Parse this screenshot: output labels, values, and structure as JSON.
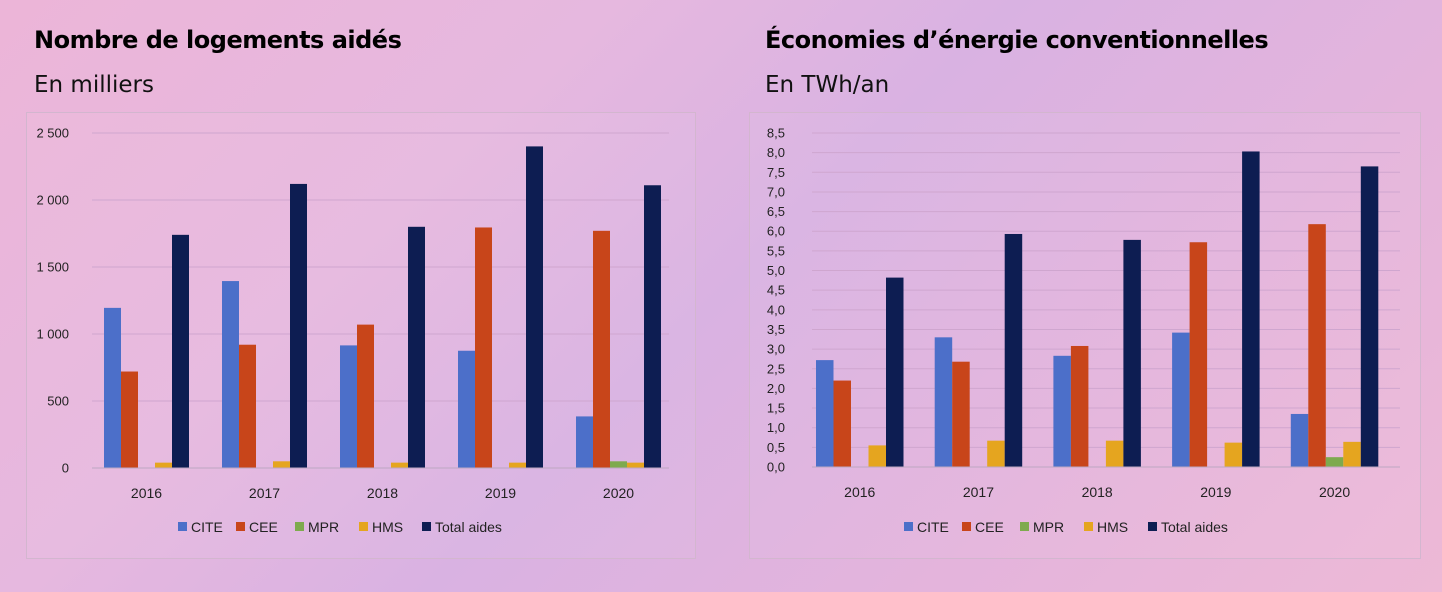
{
  "chart_data": [
    {
      "type": "bar",
      "title": "Nombre de logements aidés",
      "subtitle": "En milliers",
      "xlabel": "",
      "ylabel": "",
      "categories": [
        "2016",
        "2017",
        "2018",
        "2019",
        "2020"
      ],
      "ylim": [
        0,
        2500
      ],
      "yticks": [
        0,
        500,
        1000,
        1500,
        2000,
        2500
      ],
      "ytick_labels": [
        "0",
        "500",
        "1 000",
        "1 500",
        "2 000",
        "2 500"
      ],
      "grid": true,
      "legend_position": "bottom",
      "series": [
        {
          "name": "CITE",
          "color": "#4c6fc9",
          "values": [
            1195,
            1395,
            915,
            875,
            385
          ]
        },
        {
          "name": "CEE",
          "color": "#c8451a",
          "values": [
            720,
            920,
            1070,
            1795,
            1770
          ]
        },
        {
          "name": "MPR",
          "color": "#7eaa4e",
          "values": [
            0,
            0,
            0,
            0,
            50
          ]
        },
        {
          "name": "HMS",
          "color": "#e5a51f",
          "values": [
            40,
            50,
            40,
            40,
            40
          ]
        },
        {
          "name": "Total aides",
          "color": "#0d1d52",
          "values": [
            1740,
            2120,
            1800,
            2400,
            2110
          ]
        }
      ]
    },
    {
      "type": "bar",
      "title": "Économies d’énergie conventionnelles",
      "subtitle": "En TWh/an",
      "xlabel": "",
      "ylabel": "",
      "categories": [
        "2016",
        "2017",
        "2018",
        "2019",
        "2020"
      ],
      "ylim": [
        0,
        8.5
      ],
      "yticks": [
        0,
        0.5,
        1,
        1.5,
        2,
        2.5,
        3,
        3.5,
        4,
        4.5,
        5,
        5.5,
        6,
        6.5,
        7,
        7.5,
        8,
        8.5
      ],
      "ytick_labels": [
        "0,0",
        "0,5",
        "1,0",
        "1,5",
        "2,0",
        "2,5",
        "3,0",
        "3,5",
        "4,0",
        "4,5",
        "5,0",
        "5,5",
        "6,0",
        "6,5",
        "7,0",
        "7,5",
        "8,0",
        "8,5"
      ],
      "grid": true,
      "legend_position": "bottom",
      "series": [
        {
          "name": "CITE",
          "color": "#4c6fc9",
          "values": [
            2.72,
            3.3,
            2.83,
            3.42,
            1.35
          ]
        },
        {
          "name": "CEE",
          "color": "#c8451a",
          "values": [
            2.2,
            2.68,
            3.08,
            5.72,
            6.18
          ]
        },
        {
          "name": "MPR",
          "color": "#7eaa4e",
          "values": [
            0,
            0,
            0,
            0,
            0.25
          ]
        },
        {
          "name": "HMS",
          "color": "#e5a51f",
          "values": [
            0.55,
            0.67,
            0.67,
            0.62,
            0.64
          ]
        },
        {
          "name": "Total aides",
          "color": "#0d1d52",
          "values": [
            4.82,
            5.93,
            5.78,
            8.03,
            7.65
          ]
        }
      ]
    }
  ]
}
